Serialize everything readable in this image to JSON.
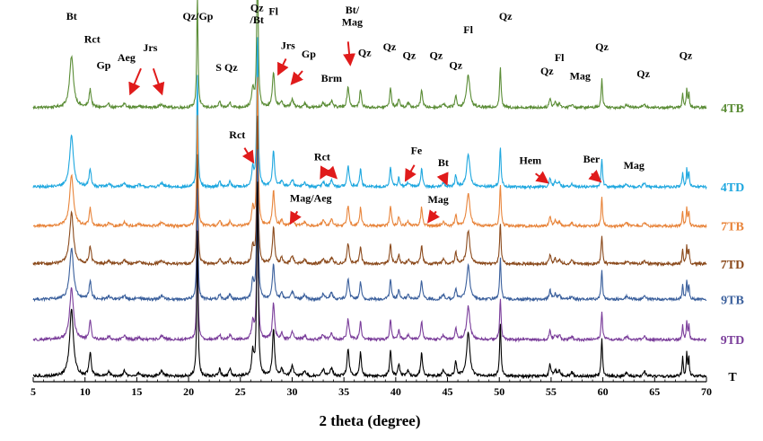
{
  "chart_data": {
    "type": "line",
    "xlabel": "2 theta (degree)",
    "ylabel": "",
    "xlim": [
      5,
      70
    ],
    "xticks": [
      5,
      10,
      15,
      20,
      25,
      30,
      35,
      40,
      45,
      50,
      55,
      60,
      65,
      70
    ],
    "grid": false,
    "legend": "series names at right end of each pattern",
    "series": [
      {
        "name": "4TB",
        "color": "#5a8c35",
        "baseline": 2.2
      },
      {
        "name": "4TD",
        "color": "#1ea7df",
        "baseline": 1.55
      },
      {
        "name": "7TB",
        "color": "#e8843a",
        "baseline": 1.23
      },
      {
        "name": "7TD",
        "color": "#8b4a1c",
        "baseline": 0.92
      },
      {
        "name": "9TB",
        "color": "#3a5f9c",
        "baseline": 0.63
      },
      {
        "name": "9TD",
        "color": "#7a3d9a",
        "baseline": 0.3
      },
      {
        "name": "T",
        "color": "#000000",
        "baseline": 0.0
      }
    ],
    "peaks": [
      {
        "x": 8.7,
        "h": 1.0,
        "w": 0.22
      },
      {
        "x": 10.5,
        "h": 0.35,
        "w": 0.12
      },
      {
        "x": 12.3,
        "h": 0.06,
        "w": 0.15
      },
      {
        "x": 13.8,
        "h": 0.08,
        "w": 0.15
      },
      {
        "x": 15.2,
        "h": 0.04,
        "w": 0.2
      },
      {
        "x": 17.4,
        "h": 0.07,
        "w": 0.2
      },
      {
        "x": 20.85,
        "h": 2.2,
        "w": 0.07
      },
      {
        "x": 23.0,
        "h": 0.1,
        "w": 0.12
      },
      {
        "x": 24.0,
        "h": 0.1,
        "w": 0.12
      },
      {
        "x": 26.2,
        "h": 0.35,
        "w": 0.12
      },
      {
        "x": 26.65,
        "h": 3.0,
        "w": 0.08
      },
      {
        "x": 28.2,
        "h": 0.7,
        "w": 0.12
      },
      {
        "x": 29.0,
        "h": 0.12,
        "w": 0.12
      },
      {
        "x": 30.0,
        "h": 0.15,
        "w": 0.15
      },
      {
        "x": 31.2,
        "h": 0.08,
        "w": 0.15
      },
      {
        "x": 33.0,
        "h": 0.1,
        "w": 0.15
      },
      {
        "x": 33.8,
        "h": 0.12,
        "w": 0.15
      },
      {
        "x": 35.4,
        "h": 0.4,
        "w": 0.12
      },
      {
        "x": 36.6,
        "h": 0.35,
        "w": 0.1
      },
      {
        "x": 39.5,
        "h": 0.38,
        "w": 0.1
      },
      {
        "x": 40.3,
        "h": 0.18,
        "w": 0.1
      },
      {
        "x": 41.2,
        "h": 0.08,
        "w": 0.15
      },
      {
        "x": 42.5,
        "h": 0.36,
        "w": 0.1
      },
      {
        "x": 44.6,
        "h": 0.08,
        "w": 0.15
      },
      {
        "x": 45.8,
        "h": 0.22,
        "w": 0.1
      },
      {
        "x": 47.0,
        "h": 0.65,
        "w": 0.18
      },
      {
        "x": 50.1,
        "h": 0.8,
        "w": 0.08
      },
      {
        "x": 54.9,
        "h": 0.18,
        "w": 0.1
      },
      {
        "x": 55.4,
        "h": 0.1,
        "w": 0.12
      },
      {
        "x": 55.8,
        "h": 0.08,
        "w": 0.12
      },
      {
        "x": 57.0,
        "h": 0.06,
        "w": 0.15
      },
      {
        "x": 59.9,
        "h": 0.55,
        "w": 0.08
      },
      {
        "x": 62.3,
        "h": 0.06,
        "w": 0.15
      },
      {
        "x": 64.0,
        "h": 0.08,
        "w": 0.12
      },
      {
        "x": 67.7,
        "h": 0.3,
        "w": 0.06
      },
      {
        "x": 68.1,
        "h": 0.35,
        "w": 0.06
      },
      {
        "x": 68.3,
        "h": 0.28,
        "w": 0.06
      }
    ],
    "phase_labels": [
      {
        "text": "Bt",
        "x": 8.7,
        "y": 2.92
      },
      {
        "text": "Rct",
        "x": 10.7,
        "y": 2.73
      },
      {
        "text": "Gp",
        "x": 11.8,
        "y": 2.52
      },
      {
        "text": "Aeg",
        "x": 14.0,
        "y": 2.58
      },
      {
        "text": "Jrs",
        "x": 16.3,
        "y": 2.66
      },
      {
        "text": "Qz/Gp",
        "x": 20.9,
        "y": 2.92
      },
      {
        "text": "S",
        "x": 22.9,
        "y": 2.5
      },
      {
        "text": "Qz",
        "x": 24.1,
        "y": 2.5
      },
      {
        "text": "Qz",
        "x": 26.6,
        "y": 2.99
      },
      {
        "text": "/Bt",
        "x": 26.6,
        "y": 2.89
      },
      {
        "text": "Fl",
        "x": 28.2,
        "y": 2.96
      },
      {
        "text": "Jrs",
        "x": 29.6,
        "y": 2.68
      },
      {
        "text": "Gp",
        "x": 31.6,
        "y": 2.61
      },
      {
        "text": "Brm",
        "x": 33.8,
        "y": 2.41
      },
      {
        "text": "Bt/",
        "x": 35.8,
        "y": 2.97
      },
      {
        "text": "Mag",
        "x": 35.8,
        "y": 2.87
      },
      {
        "text": "Qz",
        "x": 37.0,
        "y": 2.62
      },
      {
        "text": "Qz",
        "x": 39.4,
        "y": 2.67
      },
      {
        "text": "Qz",
        "x": 41.3,
        "y": 2.6
      },
      {
        "text": "Qz",
        "x": 43.9,
        "y": 2.6
      },
      {
        "text": "Qz",
        "x": 45.8,
        "y": 2.52
      },
      {
        "text": "Fl",
        "x": 47.0,
        "y": 2.81
      },
      {
        "text": "Qz",
        "x": 50.6,
        "y": 2.92
      },
      {
        "text": "Qz",
        "x": 54.6,
        "y": 2.47
      },
      {
        "text": "Fl",
        "x": 55.8,
        "y": 2.58
      },
      {
        "text": "Mag",
        "x": 57.8,
        "y": 2.43
      },
      {
        "text": "Qz",
        "x": 59.9,
        "y": 2.67
      },
      {
        "text": "Qz",
        "x": 63.9,
        "y": 2.45
      },
      {
        "text": "Qz",
        "x": 68.0,
        "y": 2.6
      },
      {
        "text": "Rct",
        "x": 24.7,
        "y": 1.95
      },
      {
        "text": "Rct",
        "x": 32.9,
        "y": 1.77
      },
      {
        "text": "Fe",
        "x": 42.0,
        "y": 1.82
      },
      {
        "text": "Bt",
        "x": 44.6,
        "y": 1.72
      },
      {
        "text": "Hem",
        "x": 53.0,
        "y": 1.74
      },
      {
        "text": "Ber",
        "x": 58.9,
        "y": 1.75
      },
      {
        "text": "Mag",
        "x": 63.0,
        "y": 1.7
      },
      {
        "text": "Mag/Aeg",
        "x": 31.8,
        "y": 1.43
      },
      {
        "text": "Mag",
        "x": 44.1,
        "y": 1.42
      }
    ],
    "annotation_arrows": [
      {
        "from": [
          15.4,
          2.52
        ],
        "to": [
          14.4,
          2.32
        ]
      },
      {
        "from": [
          16.6,
          2.52
        ],
        "to": [
          17.4,
          2.32
        ]
      },
      {
        "from": [
          35.4,
          2.74
        ],
        "to": [
          35.6,
          2.56
        ]
      },
      {
        "from": [
          29.4,
          2.6
        ],
        "to": [
          28.7,
          2.48
        ]
      },
      {
        "from": [
          31.0,
          2.5
        ],
        "to": [
          30.0,
          2.4
        ]
      },
      {
        "from": [
          25.4,
          1.87
        ],
        "to": [
          26.2,
          1.76
        ]
      },
      {
        "from": [
          33.2,
          1.69
        ],
        "to": [
          32.8,
          1.63
        ]
      },
      {
        "from": [
          33.5,
          1.69
        ],
        "to": [
          34.2,
          1.63
        ]
      },
      {
        "from": [
          41.8,
          1.73
        ],
        "to": [
          41.0,
          1.61
        ]
      },
      {
        "from": [
          44.6,
          1.64
        ],
        "to": [
          44.9,
          1.58
        ]
      },
      {
        "from": [
          53.5,
          1.66
        ],
        "to": [
          54.6,
          1.59
        ]
      },
      {
        "from": [
          58.9,
          1.66
        ],
        "to": [
          59.7,
          1.6
        ]
      },
      {
        "from": [
          30.5,
          1.35
        ],
        "to": [
          29.9,
          1.26
        ]
      },
      {
        "from": [
          43.9,
          1.35
        ],
        "to": [
          43.2,
          1.27
        ]
      }
    ]
  }
}
